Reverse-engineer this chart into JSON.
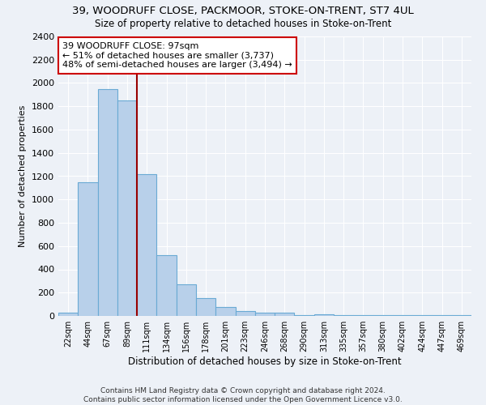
{
  "title": "39, WOODRUFF CLOSE, PACKMOOR, STOKE-ON-TRENT, ST7 4UL",
  "subtitle": "Size of property relative to detached houses in Stoke-on-Trent",
  "xlabel": "Distribution of detached houses by size in Stoke-on-Trent",
  "ylabel": "Number of detached properties",
  "bin_labels": [
    "22sqm",
    "44sqm",
    "67sqm",
    "89sqm",
    "111sqm",
    "134sqm",
    "156sqm",
    "178sqm",
    "201sqm",
    "223sqm",
    "246sqm",
    "268sqm",
    "290sqm",
    "313sqm",
    "335sqm",
    "357sqm",
    "380sqm",
    "402sqm",
    "424sqm",
    "447sqm",
    "469sqm"
  ],
  "bar_values": [
    25,
    1150,
    1950,
    1850,
    1220,
    520,
    270,
    155,
    75,
    40,
    30,
    25,
    5,
    15,
    5,
    5,
    5,
    5,
    5,
    5,
    5
  ],
  "bar_color": "#b8d0ea",
  "bar_edge_color": "#6aaad4",
  "vline_color": "#990000",
  "annotation_text": "39 WOODRUFF CLOSE: 97sqm\n← 51% of detached houses are smaller (3,737)\n48% of semi-detached houses are larger (3,494) →",
  "annotation_box_color": "#ffffff",
  "annotation_box_edge": "#cc0000",
  "ylim": [
    0,
    2400
  ],
  "yticks": [
    0,
    200,
    400,
    600,
    800,
    1000,
    1200,
    1400,
    1600,
    1800,
    2000,
    2200,
    2400
  ],
  "footer": "Contains HM Land Registry data © Crown copyright and database right 2024.\nContains public sector information licensed under the Open Government Licence v3.0.",
  "bg_color": "#edf1f7",
  "grid_color": "#ffffff",
  "title_fontsize": 9.5,
  "subtitle_fontsize": 8.5
}
